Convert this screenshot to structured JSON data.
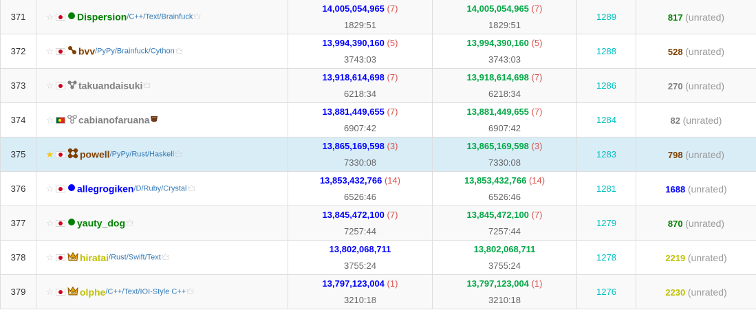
{
  "rows": [
    {
      "rank": "371",
      "fav": false,
      "flag": "jp",
      "rank_icon": "circle",
      "name": "Dispersion",
      "name_color": "green",
      "langs": [
        {
          "t": "/C++/Text/Brainfuck",
          "big": true
        }
      ],
      "user_icon": "crown-outline",
      "score": "14,005,054,965",
      "penalty": "(7)",
      "time": "1829:51",
      "score2": "14,005,054,965",
      "penalty2": "(7)",
      "time2": "1829:51",
      "perf": "1289",
      "rating": "817",
      "rating_color": "green",
      "unrated": "(unrated)"
    },
    {
      "rank": "372",
      "fav": false,
      "flag": "jp",
      "rank_icon": "nodes-2",
      "name": "bvv",
      "name_color": "brown",
      "langs": [
        {
          "t": "/PyPy/",
          "big": true
        },
        {
          "t": "Brainfuck/Cython",
          "big": false
        }
      ],
      "user_icon": "crown-outline",
      "score": "13,994,390,160",
      "penalty": "(5)",
      "time": "3743:03",
      "score2": "13,994,390,160",
      "penalty2": "(5)",
      "time2": "3743:03",
      "perf": "1288",
      "rating": "528",
      "rating_color": "brown",
      "unrated": "(unrated)"
    },
    {
      "rank": "373",
      "fav": false,
      "flag": "jp",
      "rank_icon": "nodes-3",
      "name": "takuandaisuki",
      "name_color": "gray",
      "langs": [],
      "user_icon": "crown-outline",
      "score": "13,918,614,698",
      "penalty": "(7)",
      "time": "6218:34",
      "score2": "13,918,614,698",
      "penalty2": "(7)",
      "time2": "6218:34",
      "perf": "1286",
      "rating": "270",
      "rating_color": "gray",
      "unrated": "(unrated)"
    },
    {
      "rank": "374",
      "fav": false,
      "flag": "pt",
      "rank_icon": "nodes-3-outline",
      "name": "cabianofaruana",
      "name_color": "gray",
      "langs": [],
      "user_icon": "cup",
      "score": "13,881,449,655",
      "penalty": "(7)",
      "time": "6907:42",
      "score2": "13,881,449,655",
      "penalty2": "(7)",
      "time2": "6907:42",
      "perf": "1284",
      "rating": "82",
      "rating_color": "gray",
      "unrated": "(unrated)"
    },
    {
      "rank": "375",
      "fav": true,
      "flag": "jp",
      "rank_icon": "nodes-4",
      "name": "powell",
      "name_color": "brown",
      "langs": [
        {
          "t": "/PyPy/",
          "big": true
        },
        {
          "t": "Rust/Haskell",
          "big": false
        }
      ],
      "user_icon": "crown-outline",
      "score": "13,865,169,598",
      "penalty": "(3)",
      "time": "7330:08",
      "score2": "13,865,169,598",
      "penalty2": "(3)",
      "time2": "7330:08",
      "perf": "1283",
      "rating": "798",
      "rating_color": "brown",
      "unrated": "(unrated)",
      "highlight": true
    },
    {
      "rank": "376",
      "fav": false,
      "flag": "jp",
      "rank_icon": "circle",
      "name": "allegrogiken",
      "name_color": "blue",
      "langs": [
        {
          "t": "/D/",
          "big": true
        },
        {
          "t": "Ruby/Crystal",
          "big": false
        }
      ],
      "user_icon": "crown-outline",
      "score": "13,853,432,766",
      "penalty": "(14)",
      "time": "6526:46",
      "score2": "13,853,432,766",
      "penalty2": "(14)",
      "time2": "6526:46",
      "perf": "1281",
      "rating": "1688",
      "rating_color": "blue",
      "unrated": "(unrated)"
    },
    {
      "rank": "377",
      "fav": false,
      "flag": "jp",
      "rank_icon": "circle",
      "name": "yauty_dog",
      "name_color": "green",
      "langs": [],
      "user_icon": "crown-outline",
      "score": "13,845,472,100",
      "penalty": "(7)",
      "time": "7257:44",
      "score2": "13,845,472,100",
      "penalty2": "(7)",
      "time2": "7257:44",
      "perf": "1279",
      "rating": "870",
      "rating_color": "green",
      "unrated": "(unrated)"
    },
    {
      "rank": "378",
      "fav": false,
      "flag": "jp",
      "rank_icon": "crown-100",
      "name": "hiratai",
      "name_color": "yellow",
      "langs": [
        {
          "t": "/Rust/",
          "big": true
        },
        {
          "t": "Swift/Text",
          "big": false
        }
      ],
      "user_icon": "crown-outline",
      "score": "13,802,068,711",
      "penalty": "",
      "time": "3755:24",
      "score2": "13,802,068,711",
      "penalty2": "",
      "time2": "3755:24",
      "perf": "1278",
      "rating": "2219",
      "rating_color": "yellow",
      "unrated": "(unrated)"
    },
    {
      "rank": "379",
      "fav": false,
      "flag": "jp",
      "rank_icon": "crown-100",
      "name": "olphe",
      "name_color": "yellow",
      "langs": [
        {
          "t": "/C++/",
          "big": true
        },
        {
          "t": "Text/IOI-Style C++",
          "big": false
        }
      ],
      "user_icon": "crown-outline",
      "score": "13,797,123,004",
      "penalty": "(1)",
      "time": "3210:18",
      "score2": "13,797,123,004",
      "penalty2": "(1)",
      "time2": "3210:18",
      "perf": "1276",
      "rating": "2230",
      "rating_color": "yellow",
      "unrated": "(unrated)"
    }
  ],
  "colors": {
    "green": "#008000",
    "brown": "#804000",
    "gray": "#808080",
    "blue": "#0000ff",
    "yellow": "#c0c000",
    "teal": "#00c0c0",
    "score_blue": "#0000ff",
    "score_green": "#00a845",
    "penalty": "#d9534f",
    "highlight": "#d9edf7"
  }
}
